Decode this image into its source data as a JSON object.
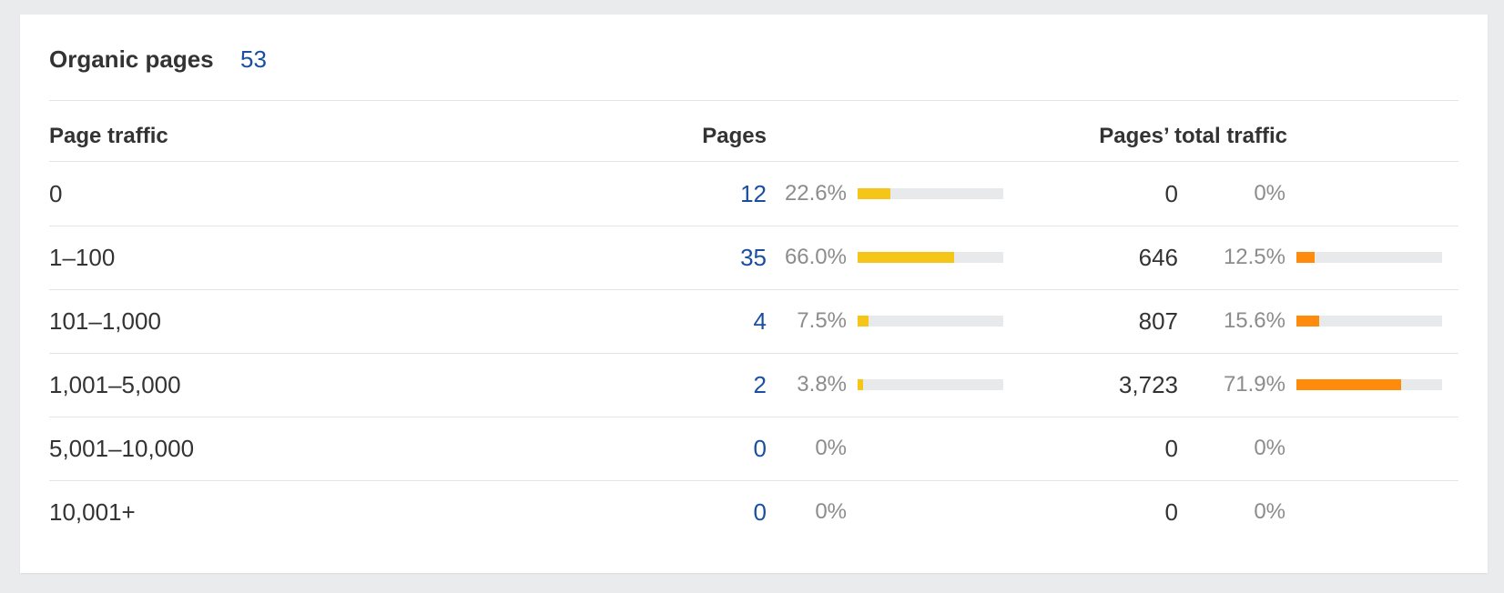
{
  "card": {
    "title": "Organic pages",
    "count": "53"
  },
  "headers": {
    "range": "Page traffic",
    "pages": "Pages",
    "traffic": "Pages’ total traffic"
  },
  "colors": {
    "pages_bar": "#f5c518",
    "traffic_bar": "#ff8b0c",
    "bar_track": "#e8e9ea",
    "link": "#1a4fa0"
  },
  "rows": [
    {
      "range": "0",
      "pages": "12",
      "pages_pct": "22.6%",
      "pages_share": 0.226,
      "traffic": "0",
      "traffic_pct": "0%",
      "traffic_share": 0
    },
    {
      "range": "1–100",
      "pages": "35",
      "pages_pct": "66.0%",
      "pages_share": 0.66,
      "traffic": "646",
      "traffic_pct": "12.5%",
      "traffic_share": 0.125
    },
    {
      "range": "101–1,000",
      "pages": "4",
      "pages_pct": "7.5%",
      "pages_share": 0.075,
      "traffic": "807",
      "traffic_pct": "15.6%",
      "traffic_share": 0.156
    },
    {
      "range": "1,001–5,000",
      "pages": "2",
      "pages_pct": "3.8%",
      "pages_share": 0.038,
      "traffic": "3,723",
      "traffic_pct": "71.9%",
      "traffic_share": 0.719
    },
    {
      "range": "5,001–10,000",
      "pages": "0",
      "pages_pct": "0%",
      "pages_share": 0,
      "traffic": "0",
      "traffic_pct": "0%",
      "traffic_share": 0
    },
    {
      "range": "10,001+",
      "pages": "0",
      "pages_pct": "0%",
      "pages_share": 0,
      "traffic": "0",
      "traffic_pct": "0%",
      "traffic_share": 0
    }
  ]
}
